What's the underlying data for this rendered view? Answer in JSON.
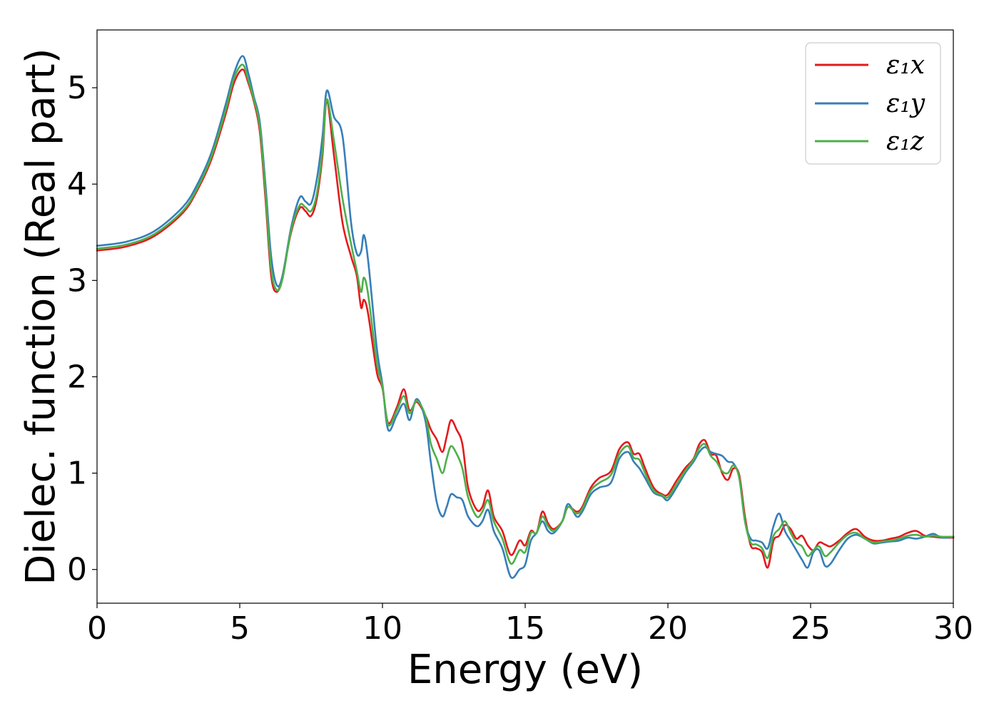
{
  "chart_data": {
    "type": "line",
    "xlabel": "Energy (eV)",
    "ylabel": "Dielec. function (Real part)",
    "xlim": [
      0,
      30
    ],
    "ylim": [
      -0.35,
      5.6
    ],
    "xticks": [
      0,
      5,
      10,
      15,
      20,
      25,
      30
    ],
    "yticks": [
      0,
      1,
      2,
      3,
      4,
      5
    ],
    "grid": false,
    "legend_position": "top-right",
    "series": [
      {
        "name": "ε₁x",
        "color": "#e41a1c",
        "x": [
          0,
          1,
          2,
          3,
          3.5,
          4,
          4.5,
          4.8,
          5.1,
          5.3,
          5.5,
          5.7,
          5.9,
          6.1,
          6.3,
          6.5,
          6.8,
          7.1,
          7.3,
          7.5,
          7.7,
          7.9,
          8.05,
          8.3,
          8.6,
          8.9,
          9.1,
          9.25,
          9.35,
          9.5,
          9.8,
          10.0,
          10.2,
          10.5,
          10.75,
          10.95,
          11.2,
          11.5,
          11.7,
          11.9,
          12.1,
          12.25,
          12.4,
          12.6,
          12.8,
          13.0,
          13.3,
          13.5,
          13.7,
          13.9,
          14.2,
          14.5,
          14.8,
          15.0,
          15.2,
          15.4,
          15.6,
          15.8,
          16.0,
          16.3,
          16.5,
          16.8,
          17.0,
          17.3,
          17.6,
          18.0,
          18.3,
          18.6,
          18.8,
          19.0,
          19.2,
          19.5,
          19.8,
          20.0,
          20.3,
          20.6,
          20.9,
          21.1,
          21.3,
          21.5,
          21.7,
          21.9,
          22.1,
          22.3,
          22.5,
          22.7,
          22.9,
          23.1,
          23.3,
          23.5,
          23.7,
          23.9,
          24.1,
          24.3,
          24.5,
          24.7,
          24.9,
          25.1,
          25.3,
          25.5,
          25.7,
          26.0,
          26.3,
          26.6,
          26.9,
          27.2,
          27.5,
          27.8,
          28.1,
          28.4,
          28.7,
          29.0,
          29.3,
          29.6,
          30.0
        ],
        "y": [
          3.31,
          3.35,
          3.46,
          3.7,
          3.93,
          4.25,
          4.72,
          5.05,
          5.19,
          5.05,
          4.85,
          4.55,
          3.85,
          3.05,
          2.88,
          3.05,
          3.5,
          3.75,
          3.72,
          3.67,
          3.85,
          4.3,
          4.86,
          4.3,
          3.6,
          3.25,
          3.05,
          2.72,
          2.8,
          2.65,
          2.05,
          1.88,
          1.52,
          1.68,
          1.87,
          1.65,
          1.74,
          1.6,
          1.45,
          1.35,
          1.22,
          1.38,
          1.55,
          1.45,
          1.3,
          0.85,
          0.62,
          0.65,
          0.82,
          0.55,
          0.4,
          0.15,
          0.3,
          0.25,
          0.4,
          0.38,
          0.6,
          0.48,
          0.42,
          0.5,
          0.65,
          0.6,
          0.65,
          0.85,
          0.95,
          1.02,
          1.25,
          1.32,
          1.2,
          1.2,
          1.05,
          0.85,
          0.78,
          0.78,
          0.92,
          1.05,
          1.15,
          1.3,
          1.34,
          1.2,
          1.18,
          1.0,
          0.93,
          1.05,
          0.98,
          0.55,
          0.25,
          0.22,
          0.18,
          0.02,
          0.3,
          0.35,
          0.46,
          0.42,
          0.32,
          0.35,
          0.25,
          0.2,
          0.28,
          0.26,
          0.24,
          0.3,
          0.38,
          0.42,
          0.34,
          0.3,
          0.3,
          0.32,
          0.34,
          0.38,
          0.4,
          0.35,
          0.34,
          0.33,
          0.33
        ]
      },
      {
        "name": "ε₁y",
        "color": "#377eb8",
        "x": [
          0,
          1,
          2,
          3,
          3.5,
          4,
          4.5,
          4.8,
          5.1,
          5.3,
          5.5,
          5.7,
          5.9,
          6.1,
          6.3,
          6.5,
          6.8,
          7.1,
          7.3,
          7.5,
          7.7,
          7.9,
          8.05,
          8.3,
          8.6,
          8.9,
          9.1,
          9.25,
          9.35,
          9.5,
          9.8,
          10.0,
          10.2,
          10.5,
          10.75,
          10.95,
          11.2,
          11.5,
          11.7,
          11.9,
          12.1,
          12.25,
          12.4,
          12.6,
          12.8,
          13.0,
          13.3,
          13.5,
          13.7,
          13.9,
          14.2,
          14.5,
          14.8,
          15.0,
          15.2,
          15.4,
          15.6,
          15.8,
          16.0,
          16.3,
          16.5,
          16.8,
          17.0,
          17.3,
          17.6,
          18.0,
          18.3,
          18.6,
          18.8,
          19.0,
          19.2,
          19.5,
          19.8,
          20.0,
          20.3,
          20.6,
          20.9,
          21.1,
          21.3,
          21.5,
          21.7,
          21.9,
          22.1,
          22.3,
          22.5,
          22.7,
          22.9,
          23.1,
          23.3,
          23.5,
          23.7,
          23.9,
          24.1,
          24.3,
          24.5,
          24.7,
          24.9,
          25.1,
          25.3,
          25.5,
          25.7,
          26.0,
          26.3,
          26.6,
          26.9,
          27.2,
          27.5,
          27.8,
          28.1,
          28.4,
          28.7,
          29.0,
          29.3,
          29.6,
          30.0
        ],
        "y": [
          3.36,
          3.4,
          3.51,
          3.76,
          3.99,
          4.32,
          4.82,
          5.15,
          5.33,
          5.15,
          4.9,
          4.65,
          4.0,
          3.25,
          2.95,
          3.05,
          3.55,
          3.86,
          3.82,
          3.8,
          4.05,
          4.5,
          4.97,
          4.7,
          4.5,
          3.6,
          3.28,
          3.3,
          3.47,
          3.2,
          2.3,
          1.92,
          1.45,
          1.6,
          1.72,
          1.55,
          1.77,
          1.55,
          1.1,
          0.7,
          0.55,
          0.65,
          0.78,
          0.75,
          0.72,
          0.55,
          0.45,
          0.5,
          0.62,
          0.4,
          0.22,
          -0.08,
          0.0,
          0.05,
          0.3,
          0.38,
          0.5,
          0.4,
          0.38,
          0.5,
          0.68,
          0.55,
          0.6,
          0.78,
          0.85,
          0.9,
          1.15,
          1.22,
          1.12,
          1.05,
          0.95,
          0.8,
          0.76,
          0.72,
          0.85,
          1.0,
          1.12,
          1.22,
          1.27,
          1.22,
          1.2,
          1.18,
          1.12,
          1.1,
          0.95,
          0.5,
          0.32,
          0.3,
          0.28,
          0.22,
          0.45,
          0.58,
          0.4,
          0.3,
          0.2,
          0.1,
          0.02,
          0.18,
          0.2,
          0.04,
          0.06,
          0.2,
          0.32,
          0.36,
          0.32,
          0.27,
          0.28,
          0.29,
          0.3,
          0.33,
          0.32,
          0.34,
          0.37,
          0.33,
          0.34
        ]
      },
      {
        "name": "ε₁z",
        "color": "#4daf4a",
        "x": [
          0,
          1,
          2,
          3,
          3.5,
          4,
          4.5,
          4.8,
          5.1,
          5.3,
          5.5,
          5.7,
          5.9,
          6.1,
          6.3,
          6.5,
          6.8,
          7.1,
          7.3,
          7.5,
          7.7,
          7.9,
          8.05,
          8.3,
          8.6,
          8.9,
          9.1,
          9.25,
          9.35,
          9.5,
          9.8,
          10.0,
          10.2,
          10.5,
          10.75,
          10.95,
          11.2,
          11.5,
          11.7,
          11.9,
          12.1,
          12.25,
          12.4,
          12.6,
          12.8,
          13.0,
          13.3,
          13.5,
          13.7,
          13.9,
          14.2,
          14.5,
          14.8,
          15.0,
          15.2,
          15.4,
          15.6,
          15.8,
          16.0,
          16.3,
          16.5,
          16.8,
          17.0,
          17.3,
          17.6,
          18.0,
          18.3,
          18.6,
          18.8,
          19.0,
          19.2,
          19.5,
          19.8,
          20.0,
          20.3,
          20.6,
          20.9,
          21.1,
          21.3,
          21.5,
          21.7,
          21.9,
          22.1,
          22.3,
          22.5,
          22.7,
          22.9,
          23.1,
          23.3,
          23.5,
          23.7,
          23.9,
          24.1,
          24.3,
          24.5,
          24.7,
          24.9,
          25.1,
          25.3,
          25.5,
          25.7,
          26.0,
          26.3,
          26.6,
          26.9,
          27.2,
          27.5,
          27.8,
          28.1,
          28.4,
          28.7,
          29.0,
          29.3,
          29.6,
          30.0
        ],
        "y": [
          3.33,
          3.37,
          3.48,
          3.72,
          3.95,
          4.28,
          4.76,
          5.1,
          5.24,
          5.08,
          4.87,
          4.6,
          3.92,
          3.12,
          2.9,
          3.02,
          3.52,
          3.78,
          3.76,
          3.72,
          3.9,
          4.35,
          4.88,
          4.45,
          3.85,
          3.38,
          3.1,
          2.88,
          3.03,
          2.85,
          2.15,
          1.9,
          1.5,
          1.65,
          1.8,
          1.62,
          1.75,
          1.6,
          1.3,
          1.15,
          1.0,
          1.15,
          1.28,
          1.2,
          1.05,
          0.75,
          0.55,
          0.6,
          0.72,
          0.5,
          0.32,
          0.06,
          0.2,
          0.18,
          0.38,
          0.38,
          0.55,
          0.45,
          0.4,
          0.5,
          0.65,
          0.58,
          0.63,
          0.82,
          0.9,
          0.98,
          1.2,
          1.28,
          1.16,
          1.14,
          1.0,
          0.82,
          0.77,
          0.75,
          0.88,
          1.02,
          1.14,
          1.26,
          1.3,
          1.18,
          1.12,
          1.02,
          1.0,
          1.08,
          0.95,
          0.5,
          0.28,
          0.26,
          0.22,
          0.12,
          0.35,
          0.42,
          0.5,
          0.38,
          0.28,
          0.24,
          0.14,
          0.2,
          0.24,
          0.14,
          0.18,
          0.28,
          0.36,
          0.38,
          0.32,
          0.28,
          0.29,
          0.3,
          0.32,
          0.35,
          0.36,
          0.34,
          0.35,
          0.34,
          0.34
        ]
      }
    ]
  }
}
